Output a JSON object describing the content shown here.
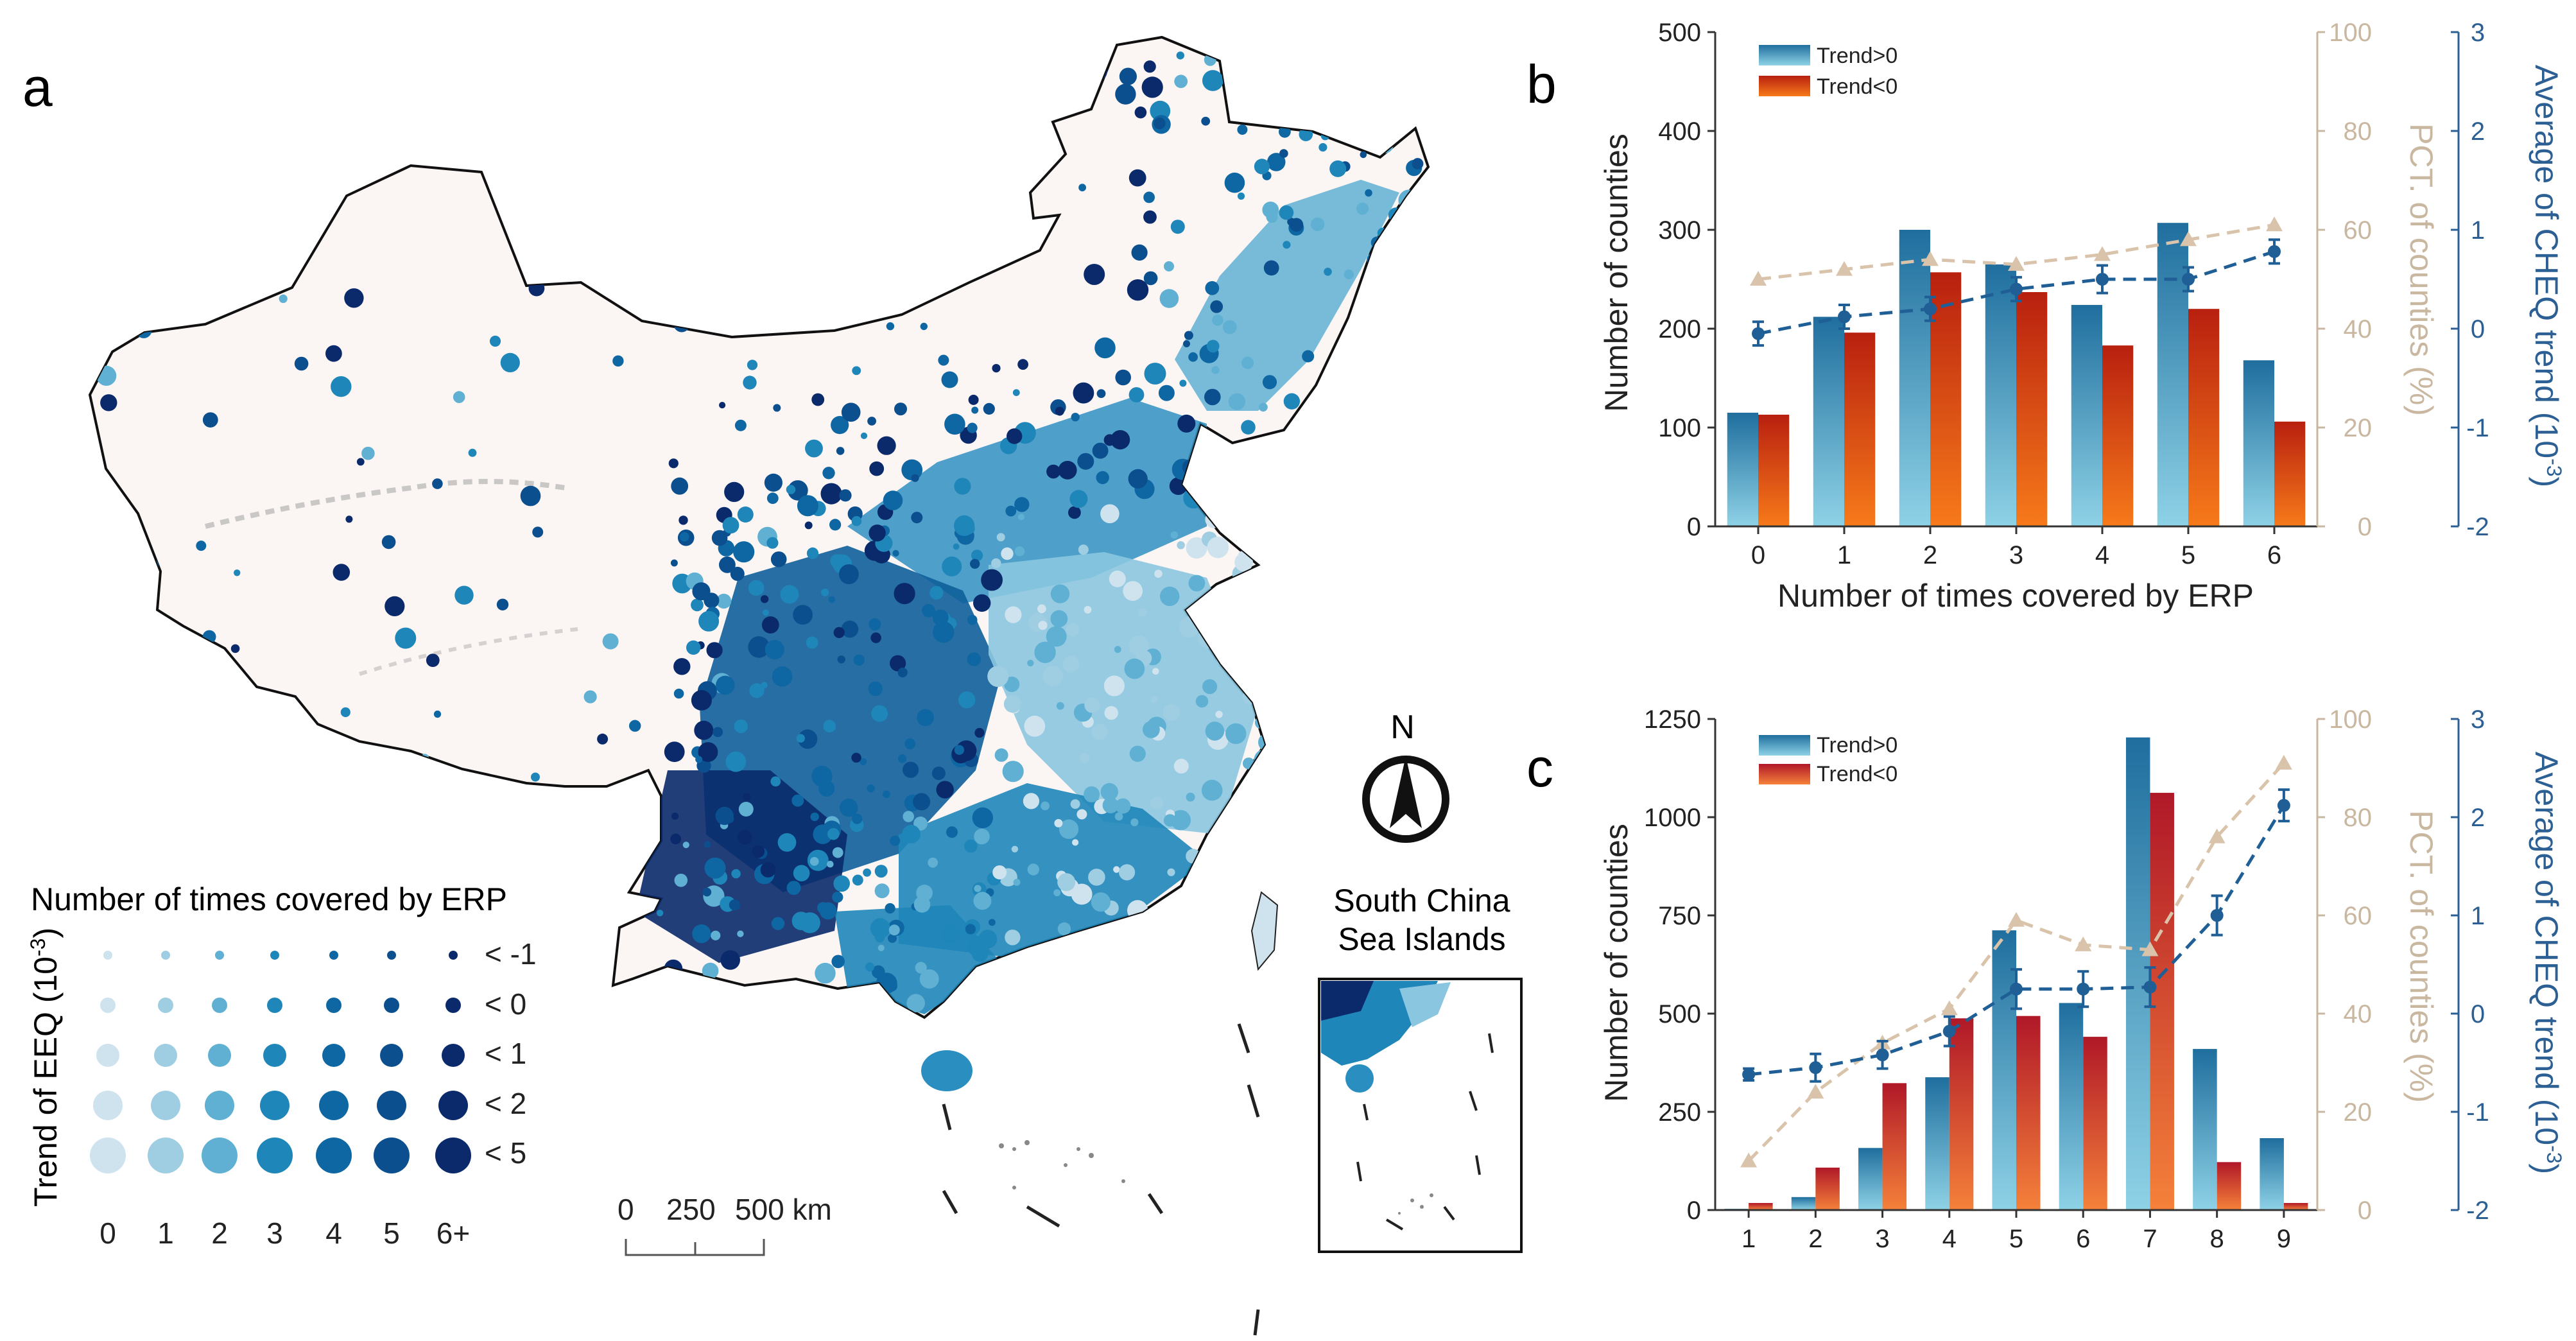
{
  "panels": {
    "a": "a",
    "b": "b",
    "c": "c"
  },
  "map": {
    "legend_title": "Number of times covered by ERP",
    "legend_ylabel": "Trend of EEQ (10",
    "legend_ylabel_sup": "-3",
    "legend_ylabel_end": ")",
    "legend_rows": [
      "< -1",
      "< 0",
      "< 1",
      "< 2",
      "< 5"
    ],
    "legend_cols": [
      "0",
      "1",
      "2",
      "3",
      "4",
      "5",
      "6+"
    ],
    "scale_labels": [
      "0",
      "250",
      "500 km"
    ],
    "north": "N",
    "inset_title_1": "South China",
    "inset_title_2": "Sea Islands",
    "colors": {
      "land": "#fbf5f4",
      "c0": "#cfe3ee",
      "c1": "#9fcde2",
      "c2": "#5fb0d3",
      "c3": "#1f86b9",
      "c4": "#0e67a2",
      "c5": "#0b4f8f",
      "c6": "#0a2a6b"
    }
  },
  "chart_data": [
    {
      "id": "b",
      "type": "bar",
      "xlabel": "Number of times covered by ERP",
      "ylabel": "Number of counties",
      "y2label": "PCT. of counties (%)",
      "y3label_main": "Average of CHEQ trend (10",
      "y3label_sup": "-3",
      "y3label_end": ")",
      "categories": [
        "0",
        "1",
        "2",
        "3",
        "4",
        "5",
        "6"
      ],
      "ylim": [
        0,
        500
      ],
      "yticks": [
        "0",
        "100",
        "200",
        "300",
        "400",
        "500"
      ],
      "y2lim": [
        0,
        100
      ],
      "y2ticks": [
        "0",
        "20",
        "40",
        "60",
        "80",
        "100"
      ],
      "y3lim": [
        -2,
        3
      ],
      "y3ticks": [
        "-2",
        "-1",
        "0",
        "1",
        "2",
        "3"
      ],
      "legend": [
        "Trend>0",
        "Trend<0"
      ],
      "series": [
        {
          "name": "Trend>0",
          "values": [
            115,
            212,
            300,
            265,
            224,
            307,
            168
          ]
        },
        {
          "name": "Trend<0",
          "values": [
            113,
            196,
            257,
            237,
            183,
            220,
            106
          ]
        },
        {
          "name": "PCT. of counties (%)",
          "values": [
            50,
            52,
            54,
            53,
            55,
            58,
            61
          ]
        },
        {
          "name": "Average of CHEQ trend",
          "values": [
            -0.05,
            0.12,
            0.2,
            0.4,
            0.5,
            0.5,
            0.78
          ],
          "errors": [
            0.12,
            0.12,
            0.12,
            0.12,
            0.14,
            0.12,
            0.12
          ]
        }
      ]
    },
    {
      "id": "c",
      "type": "bar",
      "ylabel": "Number of counties",
      "y2label": "PCT. of counties (%)",
      "y3label_main": "Average of CHEQ trend (10",
      "y3label_sup": "-3",
      "y3label_end": ")",
      "categories": [
        "1",
        "2",
        "3",
        "4",
        "5",
        "6",
        "7",
        "8",
        "9"
      ],
      "ylim": [
        0,
        1250
      ],
      "yticks": [
        "0",
        "250",
        "500",
        "750",
        "1000",
        "1250"
      ],
      "y2lim": [
        0,
        100
      ],
      "y2ticks": [
        "0",
        "20",
        "40",
        "60",
        "80",
        "100"
      ],
      "y3lim": [
        -2,
        3
      ],
      "y3ticks": [
        "-2",
        "-1",
        "0",
        "1",
        "2",
        "3"
      ],
      "legend": [
        "Trend>0",
        "Trend<0"
      ],
      "series": [
        {
          "name": "Trend>0",
          "values": [
            3,
            33,
            158,
            338,
            712,
            527,
            1203,
            410,
            183
          ]
        },
        {
          "name": "Trend<0",
          "values": [
            18,
            108,
            323,
            488,
            494,
            441,
            1062,
            122,
            18
          ]
        },
        {
          "name": "PCT. of counties (%)",
          "values": [
            10,
            24,
            34,
            41,
            59,
            54,
            53,
            76,
            91
          ]
        },
        {
          "name": "Average of CHEQ trend",
          "values": [
            -0.62,
            -0.55,
            -0.42,
            -0.18,
            0.25,
            0.25,
            0.27,
            1.0,
            2.12
          ],
          "errors": [
            0.06,
            0.14,
            0.14,
            0.15,
            0.2,
            0.18,
            0.2,
            0.2,
            0.16
          ]
        }
      ]
    }
  ]
}
